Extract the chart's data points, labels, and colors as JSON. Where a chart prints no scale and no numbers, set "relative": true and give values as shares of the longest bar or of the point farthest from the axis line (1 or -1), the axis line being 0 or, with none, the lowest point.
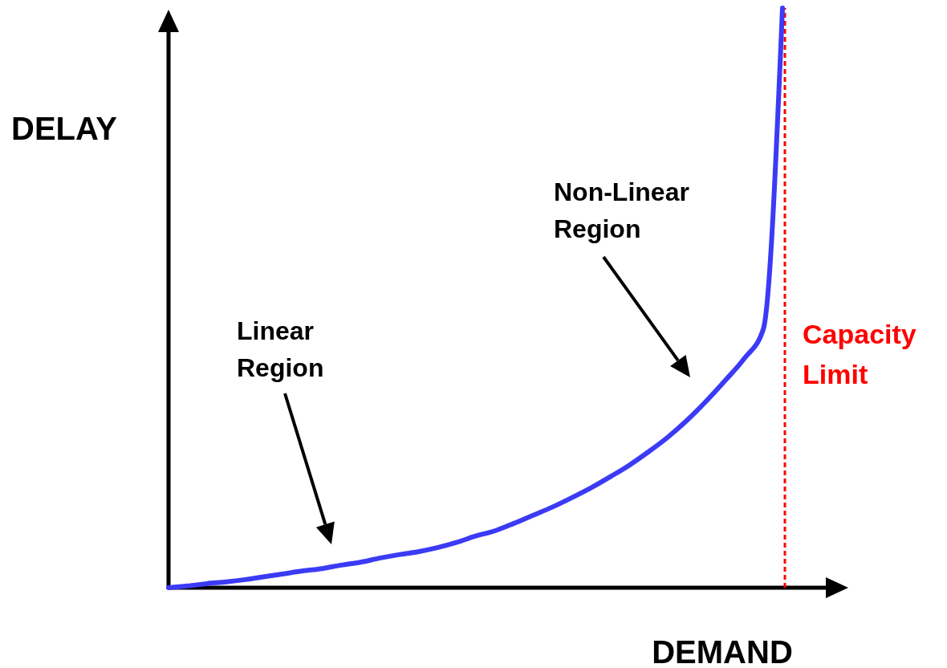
{
  "chart_data": {
    "type": "line",
    "relative": true,
    "xlabel": "DEMAND",
    "ylabel": "DELAY",
    "categories": [
      null,
      null,
      null,
      null,
      null,
      null,
      null,
      null,
      null,
      null,
      null,
      null,
      null,
      null,
      null,
      null,
      null,
      null,
      null,
      null,
      null,
      null,
      null,
      null,
      null,
      null,
      null,
      null,
      null,
      null,
      null,
      null,
      null
    ],
    "series": [
      {
        "color": "#3b3bf5",
        "values": [
          0,
          0.003,
          0.007,
          0.01,
          0.014,
          0.019,
          0.024,
          0.029,
          0.033,
          0.039,
          0.044,
          0.051,
          0.057,
          0.062,
          0.069,
          0.078,
          0.089,
          0.098,
          0.111,
          0.125,
          0.139,
          0.155,
          0.172,
          0.191,
          0.211,
          0.234,
          0.259,
          0.288,
          0.321,
          0.357,
          0.395,
          0.446,
          1
        ]
      }
    ],
    "annotations": [
      "Linear Region",
      "Non-Linear Region"
    ],
    "ref_lines": [
      {
        "axis": "x",
        "label": "Capacity Limit",
        "color": "#ff0000",
        "line_style": "dashed"
      }
    ]
  }
}
